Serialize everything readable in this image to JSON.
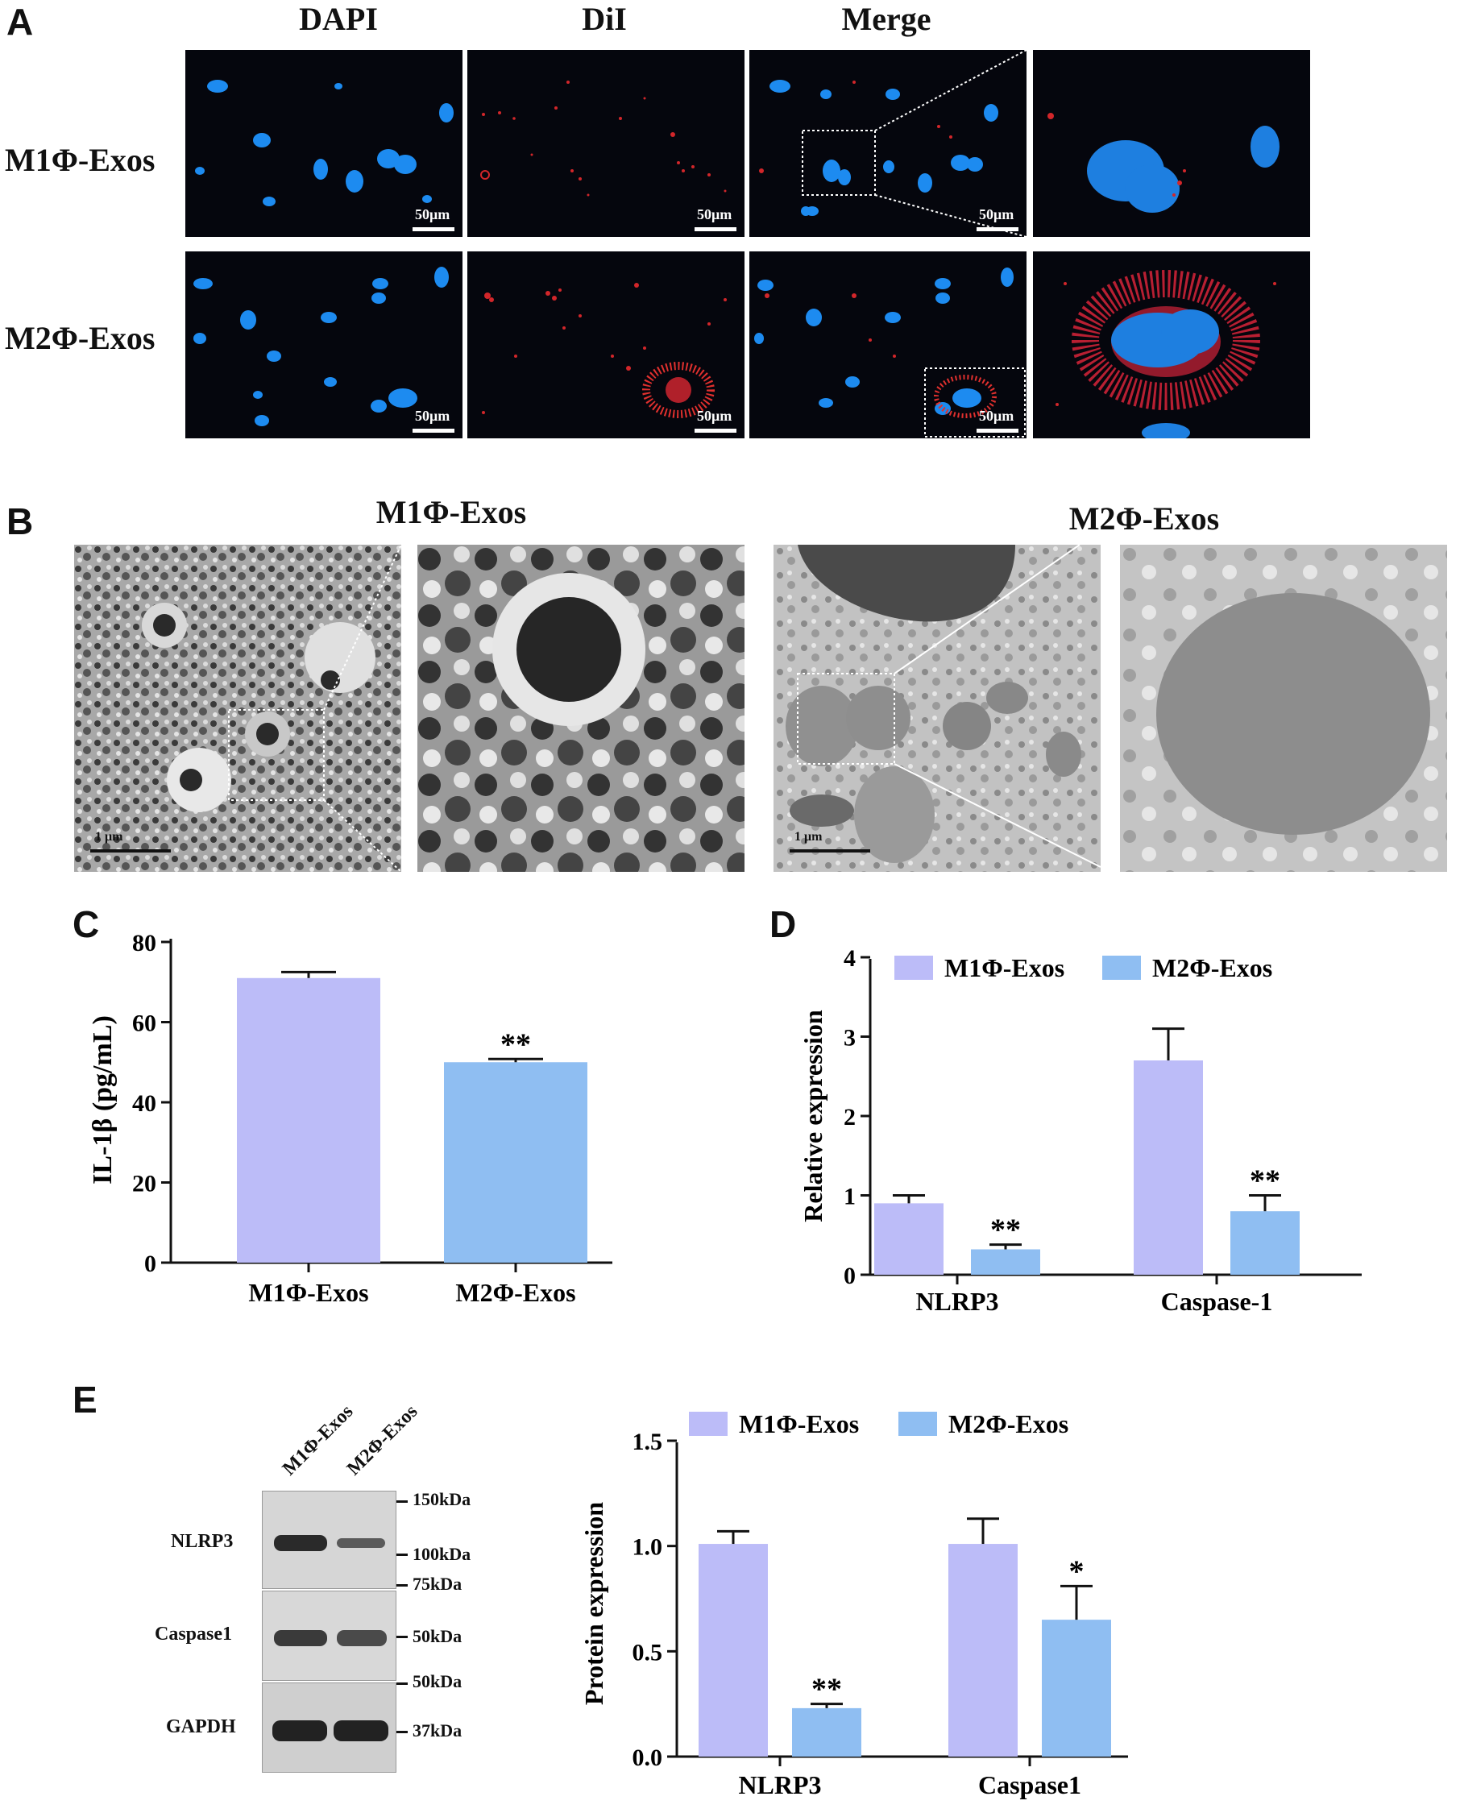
{
  "panels": {
    "A": "A",
    "B": "B",
    "C": "C",
    "D": "D",
    "E": "E"
  },
  "panelA": {
    "columns": [
      "DAPI",
      "DiI",
      "Merge"
    ],
    "rows": [
      "M1Φ-Exos",
      "M2Φ-Exos"
    ],
    "scale": "50μm"
  },
  "panelB": {
    "groups": [
      "M1Φ-Exos",
      "M2Φ-Exos"
    ],
    "scale": "1 μm"
  },
  "colors": {
    "m1": "#bcbcf8",
    "m2": "#8fbef2"
  },
  "chart_data": [
    {
      "panel": "C",
      "type": "bar",
      "categories": [
        "M1Φ-Exos",
        "M2Φ-Exos"
      ],
      "values": [
        71,
        50
      ],
      "errors": [
        1.5,
        0.8
      ],
      "significance": [
        "",
        "**"
      ],
      "ylabel": "IL-1β (pg/mL)",
      "ylim": [
        0,
        80
      ],
      "yticks": [
        "0",
        "20",
        "40",
        "60",
        "80"
      ]
    },
    {
      "panel": "D",
      "type": "bar",
      "categories": [
        "NLRP3",
        "Caspase-1"
      ],
      "series": [
        {
          "name": "M1Φ-Exos",
          "values": [
            0.9,
            2.7
          ],
          "errors": [
            0.1,
            0.4
          ],
          "significance": [
            "",
            ""
          ]
        },
        {
          "name": "M2Φ-Exos",
          "values": [
            0.32,
            0.8
          ],
          "errors": [
            0.06,
            0.2
          ],
          "significance": [
            "**",
            "**"
          ]
        }
      ],
      "ylabel": "Relative expression",
      "ylim": [
        0,
        4
      ],
      "yticks": [
        "0",
        "1",
        "2",
        "3",
        "4"
      ],
      "legend": "top"
    },
    {
      "panel": "E",
      "type": "bar",
      "categories": [
        "NLRP3",
        "Caspase1"
      ],
      "series": [
        {
          "name": "M1Φ-Exos",
          "values": [
            1.01,
            1.01
          ],
          "errors": [
            0.06,
            0.12
          ],
          "significance": [
            "",
            ""
          ]
        },
        {
          "name": "M2Φ-Exos",
          "values": [
            0.23,
            0.65
          ],
          "errors": [
            0.02,
            0.16
          ],
          "significance": [
            "**",
            "*"
          ]
        }
      ],
      "ylabel": "Protein expression",
      "ylim": [
        0,
        1.5
      ],
      "yticks": [
        "0.0",
        "0.5",
        "1.0",
        "1.5"
      ],
      "legend": "top"
    }
  ],
  "panelE_blot": {
    "lanes": [
      "M1Φ-Exos",
      "M2Φ-Exos"
    ],
    "proteins": [
      "NLRP3",
      "Caspase1",
      "GAPDH"
    ],
    "markers": [
      "150kDa",
      "100kDa",
      "75kDa",
      "50kDa",
      "50kDa",
      "37kDa"
    ]
  }
}
